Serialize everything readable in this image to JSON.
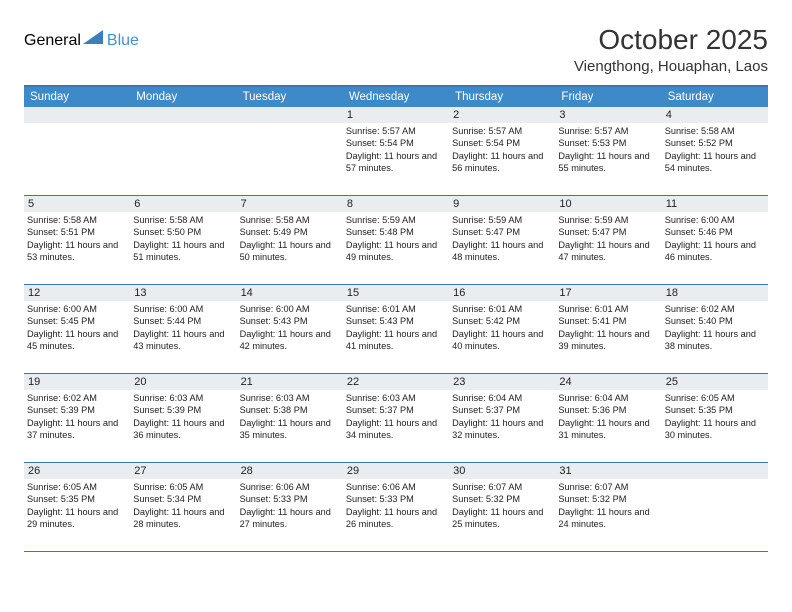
{
  "logo": {
    "text1": "General",
    "text2": "Blue"
  },
  "title": "October 2025",
  "location": "Viengthong, Houaphan, Laos",
  "colors": {
    "header_blue": "#3e8ac8",
    "border_blue": "#3478b6",
    "daynum_bg": "#e9edf0",
    "logo_gray": "#555555",
    "logo_blue": "#4a8fc9"
  },
  "weekdays": [
    "Sunday",
    "Monday",
    "Tuesday",
    "Wednesday",
    "Thursday",
    "Friday",
    "Saturday"
  ],
  "weeks": [
    [
      {
        "empty": true
      },
      {
        "empty": true
      },
      {
        "empty": true
      },
      {
        "n": "1",
        "sunrise": "5:57 AM",
        "sunset": "5:54 PM",
        "dh": "11",
        "dm": "57"
      },
      {
        "n": "2",
        "sunrise": "5:57 AM",
        "sunset": "5:54 PM",
        "dh": "11",
        "dm": "56"
      },
      {
        "n": "3",
        "sunrise": "5:57 AM",
        "sunset": "5:53 PM",
        "dh": "11",
        "dm": "55"
      },
      {
        "n": "4",
        "sunrise": "5:58 AM",
        "sunset": "5:52 PM",
        "dh": "11",
        "dm": "54"
      }
    ],
    [
      {
        "n": "5",
        "sunrise": "5:58 AM",
        "sunset": "5:51 PM",
        "dh": "11",
        "dm": "53"
      },
      {
        "n": "6",
        "sunrise": "5:58 AM",
        "sunset": "5:50 PM",
        "dh": "11",
        "dm": "51"
      },
      {
        "n": "7",
        "sunrise": "5:58 AM",
        "sunset": "5:49 PM",
        "dh": "11",
        "dm": "50"
      },
      {
        "n": "8",
        "sunrise": "5:59 AM",
        "sunset": "5:48 PM",
        "dh": "11",
        "dm": "49"
      },
      {
        "n": "9",
        "sunrise": "5:59 AM",
        "sunset": "5:47 PM",
        "dh": "11",
        "dm": "48"
      },
      {
        "n": "10",
        "sunrise": "5:59 AM",
        "sunset": "5:47 PM",
        "dh": "11",
        "dm": "47"
      },
      {
        "n": "11",
        "sunrise": "6:00 AM",
        "sunset": "5:46 PM",
        "dh": "11",
        "dm": "46"
      }
    ],
    [
      {
        "n": "12",
        "sunrise": "6:00 AM",
        "sunset": "5:45 PM",
        "dh": "11",
        "dm": "45"
      },
      {
        "n": "13",
        "sunrise": "6:00 AM",
        "sunset": "5:44 PM",
        "dh": "11",
        "dm": "43"
      },
      {
        "n": "14",
        "sunrise": "6:00 AM",
        "sunset": "5:43 PM",
        "dh": "11",
        "dm": "42"
      },
      {
        "n": "15",
        "sunrise": "6:01 AM",
        "sunset": "5:43 PM",
        "dh": "11",
        "dm": "41"
      },
      {
        "n": "16",
        "sunrise": "6:01 AM",
        "sunset": "5:42 PM",
        "dh": "11",
        "dm": "40"
      },
      {
        "n": "17",
        "sunrise": "6:01 AM",
        "sunset": "5:41 PM",
        "dh": "11",
        "dm": "39"
      },
      {
        "n": "18",
        "sunrise": "6:02 AM",
        "sunset": "5:40 PM",
        "dh": "11",
        "dm": "38"
      }
    ],
    [
      {
        "n": "19",
        "sunrise": "6:02 AM",
        "sunset": "5:39 PM",
        "dh": "11",
        "dm": "37"
      },
      {
        "n": "20",
        "sunrise": "6:03 AM",
        "sunset": "5:39 PM",
        "dh": "11",
        "dm": "36"
      },
      {
        "n": "21",
        "sunrise": "6:03 AM",
        "sunset": "5:38 PM",
        "dh": "11",
        "dm": "35"
      },
      {
        "n": "22",
        "sunrise": "6:03 AM",
        "sunset": "5:37 PM",
        "dh": "11",
        "dm": "34"
      },
      {
        "n": "23",
        "sunrise": "6:04 AM",
        "sunset": "5:37 PM",
        "dh": "11",
        "dm": "32"
      },
      {
        "n": "24",
        "sunrise": "6:04 AM",
        "sunset": "5:36 PM",
        "dh": "11",
        "dm": "31"
      },
      {
        "n": "25",
        "sunrise": "6:05 AM",
        "sunset": "5:35 PM",
        "dh": "11",
        "dm": "30"
      }
    ],
    [
      {
        "n": "26",
        "sunrise": "6:05 AM",
        "sunset": "5:35 PM",
        "dh": "11",
        "dm": "29"
      },
      {
        "n": "27",
        "sunrise": "6:05 AM",
        "sunset": "5:34 PM",
        "dh": "11",
        "dm": "28"
      },
      {
        "n": "28",
        "sunrise": "6:06 AM",
        "sunset": "5:33 PM",
        "dh": "11",
        "dm": "27"
      },
      {
        "n": "29",
        "sunrise": "6:06 AM",
        "sunset": "5:33 PM",
        "dh": "11",
        "dm": "26"
      },
      {
        "n": "30",
        "sunrise": "6:07 AM",
        "sunset": "5:32 PM",
        "dh": "11",
        "dm": "25"
      },
      {
        "n": "31",
        "sunrise": "6:07 AM",
        "sunset": "5:32 PM",
        "dh": "11",
        "dm": "24"
      },
      {
        "empty": true
      }
    ]
  ]
}
